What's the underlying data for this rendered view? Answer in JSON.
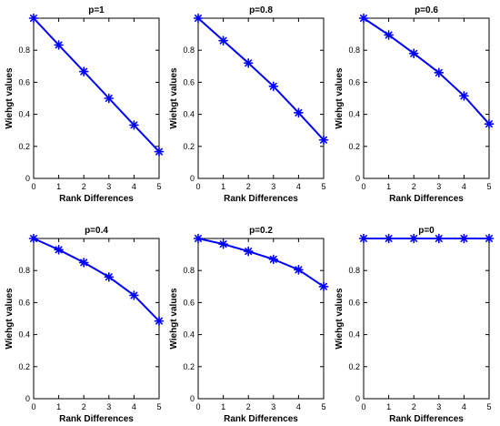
{
  "figure": {
    "background": "#ffffff",
    "line_color": "#0000ff",
    "axis_color": "#000000"
  },
  "chart_data": [
    {
      "type": "line",
      "title": "p=1",
      "xlabel": "Rank Differences",
      "ylabel": "Wiehgt values",
      "xlim": [
        0,
        5
      ],
      "ylim": [
        0,
        1
      ],
      "xticks": [
        "0",
        "1",
        "2",
        "3",
        "4",
        "5"
      ],
      "yticks": [
        "0",
        "0.2",
        "0.4",
        "0.6",
        "0.8"
      ],
      "marker": "asterisk",
      "grid": false,
      "x": [
        0,
        1,
        2,
        3,
        4,
        5
      ],
      "series": [
        {
          "values": [
            1.0,
            0.833,
            0.667,
            0.5,
            0.333,
            0.167
          ]
        }
      ]
    },
    {
      "type": "line",
      "title": "p=0.8",
      "xlabel": "Rank Differences",
      "ylabel": "Wiehgt values",
      "xlim": [
        0,
        5
      ],
      "ylim": [
        0,
        1
      ],
      "xticks": [
        "0",
        "1",
        "2",
        "3",
        "4",
        "5"
      ],
      "yticks": [
        "0",
        "0.2",
        "0.4",
        "0.6",
        "0.8"
      ],
      "marker": "asterisk",
      "grid": false,
      "x": [
        0,
        1,
        2,
        3,
        4,
        5
      ],
      "series": [
        {
          "values": [
            1.0,
            0.86,
            0.72,
            0.575,
            0.41,
            0.24
          ]
        }
      ]
    },
    {
      "type": "line",
      "title": "p=0.6",
      "xlabel": "Rank Differences",
      "ylabel": "Wiehgt values",
      "xlim": [
        0,
        5
      ],
      "ylim": [
        0,
        1
      ],
      "xticks": [
        "0",
        "1",
        "2",
        "3",
        "4",
        "5"
      ],
      "yticks": [
        "0",
        "0.2",
        "0.4",
        "0.6",
        "0.8"
      ],
      "marker": "asterisk",
      "grid": false,
      "x": [
        0,
        1,
        2,
        3,
        4,
        5
      ],
      "series": [
        {
          "values": [
            1.0,
            0.895,
            0.78,
            0.66,
            0.515,
            0.34
          ]
        }
      ]
    },
    {
      "type": "line",
      "title": "p=0.4",
      "xlabel": "Rank Differences",
      "ylabel": "Wiehgt values",
      "xlim": [
        0,
        5
      ],
      "ylim": [
        0,
        1
      ],
      "xticks": [
        "0",
        "1",
        "2",
        "3",
        "4",
        "5"
      ],
      "yticks": [
        "0",
        "0.2",
        "0.4",
        "0.6",
        "0.8"
      ],
      "marker": "asterisk",
      "grid": false,
      "x": [
        0,
        1,
        2,
        3,
        4,
        5
      ],
      "series": [
        {
          "values": [
            1.0,
            0.93,
            0.85,
            0.76,
            0.645,
            0.485
          ]
        }
      ]
    },
    {
      "type": "line",
      "title": "p=0.2",
      "xlabel": "Rank Differences",
      "ylabel": "Wiehgt values",
      "xlim": [
        0,
        5
      ],
      "ylim": [
        0,
        1
      ],
      "xticks": [
        "0",
        "1",
        "2",
        "3",
        "4",
        "5"
      ],
      "yticks": [
        "0",
        "0.2",
        "0.4",
        "0.6",
        "0.8"
      ],
      "marker": "asterisk",
      "grid": false,
      "x": [
        0,
        1,
        2,
        3,
        4,
        5
      ],
      "series": [
        {
          "values": [
            1.0,
            0.965,
            0.92,
            0.87,
            0.805,
            0.7
          ]
        }
      ]
    },
    {
      "type": "line",
      "title": "p=0",
      "xlabel": "Rank Differences",
      "ylabel": "Wiehgt values",
      "xlim": [
        0,
        5
      ],
      "ylim": [
        0,
        1
      ],
      "xticks": [
        "0",
        "1",
        "2",
        "3",
        "4",
        "5"
      ],
      "yticks": [
        "0",
        "0.2",
        "0.4",
        "0.6",
        "0.8"
      ],
      "marker": "asterisk",
      "grid": false,
      "x": [
        0,
        1,
        2,
        3,
        4,
        5
      ],
      "series": [
        {
          "values": [
            1.0,
            1.0,
            1.0,
            1.0,
            1.0,
            1.0
          ]
        }
      ]
    }
  ]
}
